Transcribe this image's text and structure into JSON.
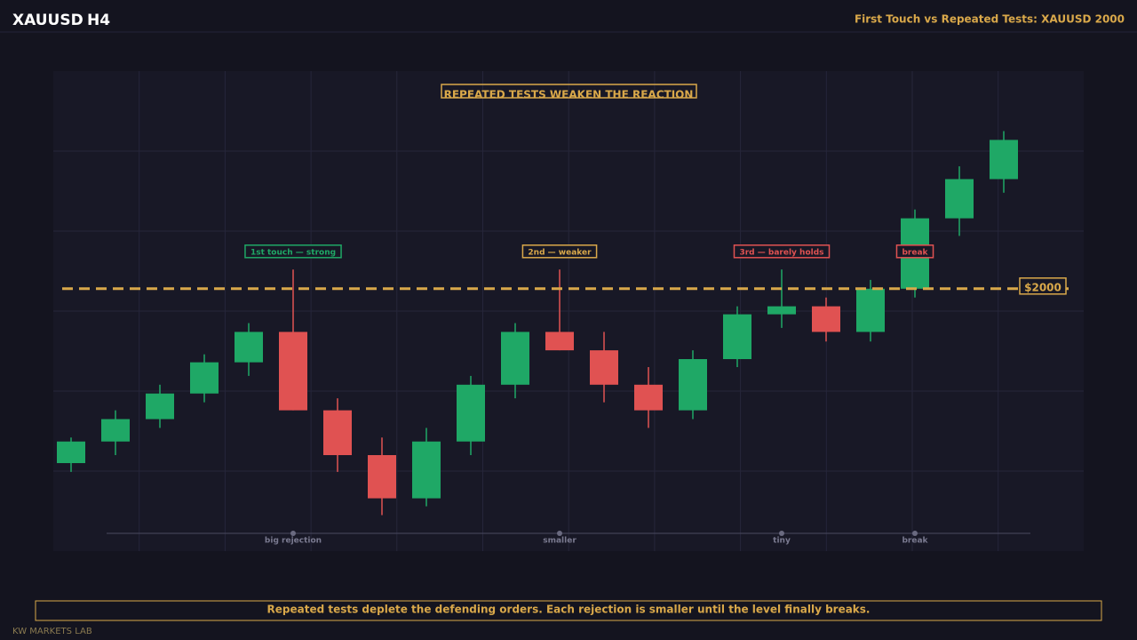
{
  "header": {
    "symbol": "XAUUSD",
    "timeframe": "H4",
    "title": "First Touch vs Repeated Tests: XAUUSD 2000"
  },
  "chart_data": {
    "type": "candlestick",
    "title": "REPEATED TESTS WEAKEN THE REACTION",
    "ylim": [
      1967.2,
      2027.2
    ],
    "up_color": "#1fa866",
    "down_color": "#e05252",
    "series": [
      {
        "open": [
          1978.2,
          1980.9,
          1983.7,
          1986.9,
          1990.8,
          1994.6,
          1984.8,
          1979.2,
          1973.8,
          1980.9,
          1988.0,
          1994.6,
          1992.3,
          1988.0,
          1984.8,
          1991.2,
          1996.8,
          1997.8,
          1994.6,
          2000,
          2008.8,
          2013.7
        ],
        "high": [
          1981.4,
          1984.8,
          1988.0,
          1991.8,
          1995.7,
          2002.4,
          1986.3,
          1981.4,
          1982.6,
          1989.1,
          1995.7,
          2002.4,
          1994.6,
          1990.2,
          1992.3,
          1997.8,
          2002.4,
          1998.9,
          2001.1,
          2009.9,
          2015.3,
          2019.7
        ],
        "low": [
          1977.1,
          1979.2,
          1982.6,
          1985.8,
          1989.1,
          1984.8,
          1977.1,
          1971.7,
          1972.8,
          1979.2,
          1986.3,
          1992.3,
          1985.8,
          1982.6,
          1983.7,
          1990.2,
          1995.1,
          1993.4,
          1993.4,
          1998.9,
          2006.6,
          2012.0
        ],
        "close": [
          1980.9,
          1983.7,
          1986.9,
          1990.8,
          1994.6,
          1984.8,
          1979.2,
          1973.8,
          1980.9,
          1988.0,
          1994.6,
          1992.3,
          1988.0,
          1984.8,
          1991.2,
          1996.8,
          1997.8,
          1994.6,
          2000,
          2008.8,
          2013.7,
          2018.6
        ]
      }
    ],
    "level": {
      "value": 2000,
      "label": "$2000",
      "color": "#d9a84a"
    },
    "annotations": [
      {
        "index": 5,
        "text": "1st touch — strong",
        "color": "#1fa866"
      },
      {
        "index": 11,
        "text": "2nd — weaker",
        "color": "#d9a84a"
      },
      {
        "index": 16,
        "text": "3rd — barely holds",
        "color": "#e05252"
      },
      {
        "index": 19,
        "text": "break",
        "color": "#e05252"
      }
    ],
    "markers": [
      {
        "index": 5,
        "text": "big rejection"
      },
      {
        "index": 11,
        "text": "smaller"
      },
      {
        "index": 16,
        "text": "tiny"
      },
      {
        "index": 19,
        "text": "break"
      }
    ]
  },
  "footer": {
    "note": "Repeated tests deplete the defending orders. Each rejection is smaller until the level finally breaks.",
    "brand": "KW MARKETS LAB"
  }
}
